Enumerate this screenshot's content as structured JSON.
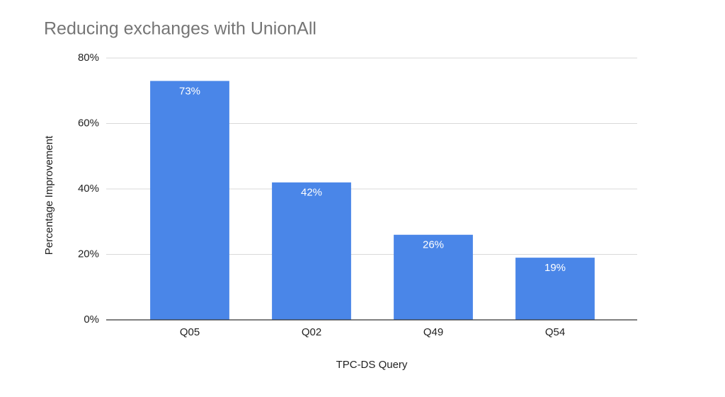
{
  "chart_data": {
    "type": "bar",
    "title": "Reducing exchanges with UnionAll",
    "x_label": "TPC-DS Query",
    "y_label": "Percentage Improvement",
    "categories": [
      "Q05",
      "Q02",
      "Q49",
      "Q54"
    ],
    "values": [
      73,
      42,
      26,
      19
    ],
    "value_labels": [
      "73%",
      "42%",
      "26%",
      "19%"
    ],
    "color": "#4a86e8",
    "ylim": [
      0,
      80
    ],
    "yticks": [
      {
        "value": 0,
        "label": "0%"
      },
      {
        "value": 20,
        "label": "20%"
      },
      {
        "value": 40,
        "label": "40%"
      },
      {
        "value": 60,
        "label": "60%"
      },
      {
        "value": 80,
        "label": "80%"
      }
    ],
    "grid": true
  }
}
